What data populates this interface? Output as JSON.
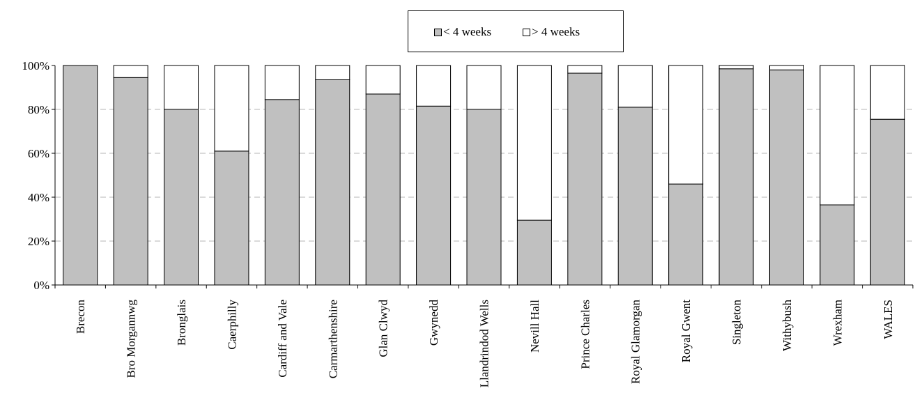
{
  "chart_data": {
    "type": "bar",
    "stacked": true,
    "percent_stacked": true,
    "categories": [
      "Brecon",
      "Bro Morgannwg",
      "Bronglais",
      "Caerphilly",
      "Cardiff and Vale",
      "Carmarthenshire",
      "Glan Clwyd",
      "Gwynedd",
      "Llandrindod Wells",
      "Nevill Hall",
      "Prince Charles",
      "Royal Glamorgan",
      "Royal Gwent",
      "Singleton",
      "Withybush",
      "Wrexham",
      "WALES"
    ],
    "series": [
      {
        "name": "< 4 weeks",
        "color": "#c0c0c0",
        "values": [
          100,
          94.5,
          80,
          61,
          84.5,
          93.5,
          87,
          81.5,
          80,
          29.5,
          96.5,
          81,
          46,
          98.5,
          98,
          36.5,
          75.5
        ]
      },
      {
        "name": "> 4 weeks",
        "color": "#ffffff",
        "values": [
          0,
          5.5,
          20,
          39,
          15.5,
          6.5,
          13,
          18.5,
          20,
          70.5,
          3.5,
          19,
          54,
          1.5,
          2,
          63.5,
          24.5
        ]
      }
    ],
    "y_ticks": [
      "0%",
      "20%",
      "40%",
      "60%",
      "80%",
      "100%"
    ],
    "ylim": [
      0,
      100
    ],
    "grid": true,
    "legend_position": "top-center",
    "xlabel": "",
    "ylabel": ""
  }
}
